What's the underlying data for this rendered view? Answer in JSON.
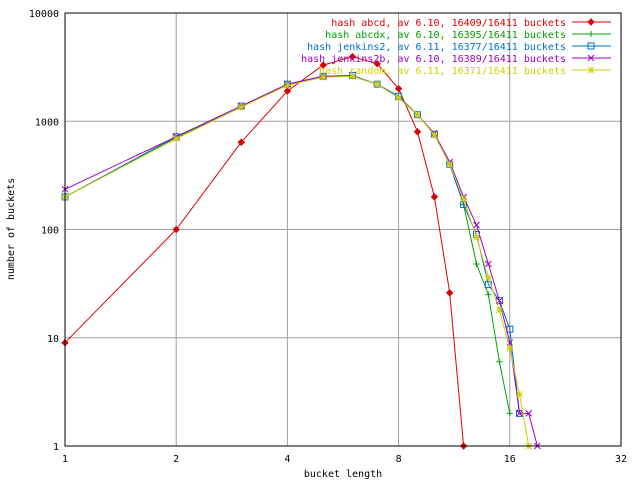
{
  "chart_data": {
    "type": "line",
    "title": "",
    "xlabel": "bucket length",
    "ylabel": "number of buckets",
    "xscale": "log2",
    "yscale": "log10",
    "xlim": [
      1,
      32
    ],
    "ylim": [
      1,
      10000
    ],
    "grid": true,
    "legend_position": "top-right",
    "x_ticks": [
      "1",
      "2",
      "4",
      "8",
      "16",
      "32"
    ],
    "y_ticks": [
      "1",
      "10",
      "100",
      "1000",
      "10000"
    ],
    "series": [
      {
        "name": "hash abcd, av 6.10, 16409/16411 buckets",
        "color": "#e00000",
        "marker": "diamond",
        "points": [
          [
            1,
            9
          ],
          [
            2,
            100
          ],
          [
            3,
            640
          ],
          [
            4,
            1900
          ],
          [
            5,
            3300
          ],
          [
            6,
            3950
          ],
          [
            7,
            3400
          ],
          [
            8,
            2000
          ],
          [
            9,
            800
          ],
          [
            10,
            200
          ],
          [
            11,
            26
          ],
          [
            12,
            1
          ]
        ]
      },
      {
        "name": "hash abcdx, av 6.10, 16395/16411 buckets",
        "color": "#00a000",
        "marker": "plus",
        "points": [
          [
            1,
            200
          ],
          [
            2,
            700
          ],
          [
            3,
            1350
          ],
          [
            4,
            2200
          ],
          [
            5,
            2600
          ],
          [
            6,
            2600
          ],
          [
            7,
            2200
          ],
          [
            8,
            1700
          ],
          [
            9,
            1150
          ],
          [
            10,
            750
          ],
          [
            11,
            400
          ],
          [
            12,
            170
          ],
          [
            13,
            48
          ],
          [
            14,
            25
          ],
          [
            15,
            6
          ],
          [
            16,
            2
          ]
        ]
      },
      {
        "name": "hash jenkins2, av 6.11, 16377/16411 buckets",
        "color": "#0070d0",
        "marker": "square",
        "points": [
          [
            1,
            200
          ],
          [
            2,
            720
          ],
          [
            3,
            1380
          ],
          [
            4,
            2200
          ],
          [
            5,
            2600
          ],
          [
            6,
            2650
          ],
          [
            7,
            2200
          ],
          [
            8,
            1700
          ],
          [
            9,
            1150
          ],
          [
            10,
            760
          ],
          [
            11,
            400
          ],
          [
            12,
            170
          ],
          [
            13,
            90
          ],
          [
            14,
            31
          ],
          [
            15,
            22
          ],
          [
            16,
            12
          ],
          [
            17,
            2
          ]
        ]
      },
      {
        "name": "hash jenkins2b, av 6.10, 16389/16411 buckets",
        "color": "#a000c0",
        "marker": "cross",
        "points": [
          [
            1,
            235
          ],
          [
            2,
            720
          ],
          [
            3,
            1380
          ],
          [
            4,
            2200
          ],
          [
            5,
            2600
          ],
          [
            6,
            2600
          ],
          [
            7,
            2200
          ],
          [
            8,
            1650
          ],
          [
            9,
            1150
          ],
          [
            10,
            770
          ],
          [
            11,
            420
          ],
          [
            12,
            200
          ],
          [
            13,
            110
          ],
          [
            14,
            48
          ],
          [
            15,
            22
          ],
          [
            16,
            9
          ],
          [
            17,
            2
          ],
          [
            18,
            2
          ],
          [
            19,
            1
          ]
        ]
      },
      {
        "name": "hash random, av 6.11, 16371/16411 buckets",
        "color": "#d0d000",
        "marker": "star",
        "points": [
          [
            1,
            200
          ],
          [
            2,
            690
          ],
          [
            3,
            1350
          ],
          [
            4,
            2150
          ],
          [
            5,
            2550
          ],
          [
            6,
            2600
          ],
          [
            7,
            2200
          ],
          [
            8,
            1650
          ],
          [
            9,
            1150
          ],
          [
            10,
            750
          ],
          [
            11,
            400
          ],
          [
            12,
            190
          ],
          [
            13,
            85
          ],
          [
            14,
            36
          ],
          [
            15,
            18
          ],
          [
            16,
            8
          ],
          [
            17,
            3
          ],
          [
            18,
            1
          ]
        ]
      }
    ]
  }
}
